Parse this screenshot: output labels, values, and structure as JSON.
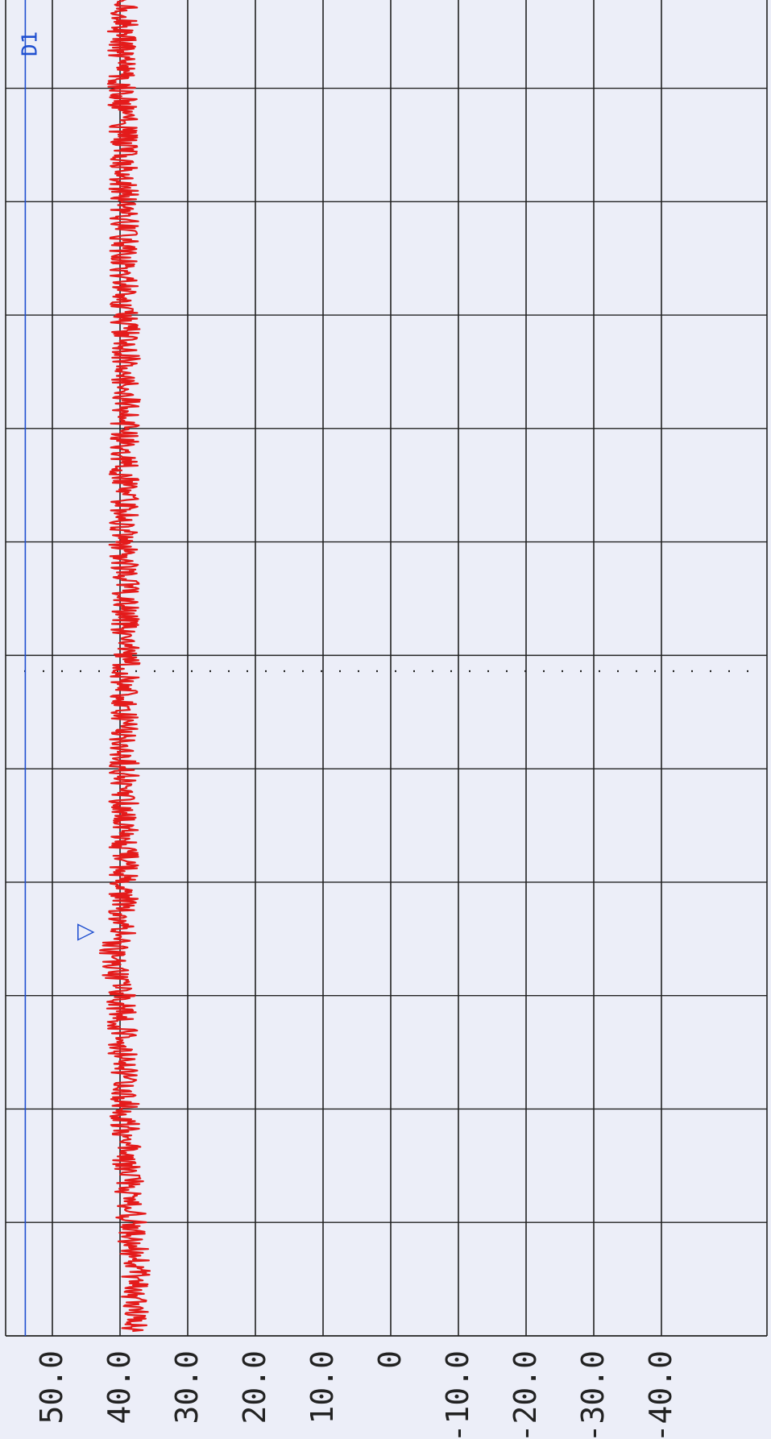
{
  "chart_data": {
    "type": "line",
    "orientation": "rotated-90",
    "ylim": [
      -40,
      55
    ],
    "ytick_labels": [
      "50.0",
      "40.0",
      "30.0",
      "20.0",
      "10.0",
      "0",
      "-10.0",
      "-20.0",
      "-30.0",
      "-40.0"
    ],
    "ytick_values": [
      50,
      40,
      30,
      20,
      10,
      0,
      -10,
      -20,
      -30,
      -40
    ],
    "grid": true,
    "annotations": {
      "display_line": {
        "label": "D1",
        "value": 54,
        "color": "#1f4fd0"
      },
      "marker": {
        "label": "▽",
        "position": 0.28,
        "value": 43
      },
      "center_marker": {
        "style": "dotted",
        "position": 0.5
      }
    },
    "series": [
      {
        "color": "#e41b1b",
        "x_range": [
          0,
          1
        ],
        "values_baseline": 39,
        "noise_amplitude": 2.2,
        "samples": [
          [
            0.0,
            37.5
          ],
          [
            0.05,
            37.8
          ],
          [
            0.1,
            38.6
          ],
          [
            0.15,
            39.2
          ],
          [
            0.2,
            39.5
          ],
          [
            0.25,
            39.8
          ],
          [
            0.28,
            41.5
          ],
          [
            0.3,
            39.6
          ],
          [
            0.4,
            39.4
          ],
          [
            0.5,
            39.3
          ],
          [
            0.6,
            39.5
          ],
          [
            0.7,
            39.2
          ],
          [
            0.8,
            39.4
          ],
          [
            0.9,
            39.6
          ],
          [
            1.0,
            39.6
          ]
        ]
      }
    ]
  },
  "colors": {
    "background": "#eceef8",
    "grid": "#222222",
    "trace": "#e41b1b",
    "annotation": "#1f4fd0",
    "tick_text": "#222222"
  }
}
